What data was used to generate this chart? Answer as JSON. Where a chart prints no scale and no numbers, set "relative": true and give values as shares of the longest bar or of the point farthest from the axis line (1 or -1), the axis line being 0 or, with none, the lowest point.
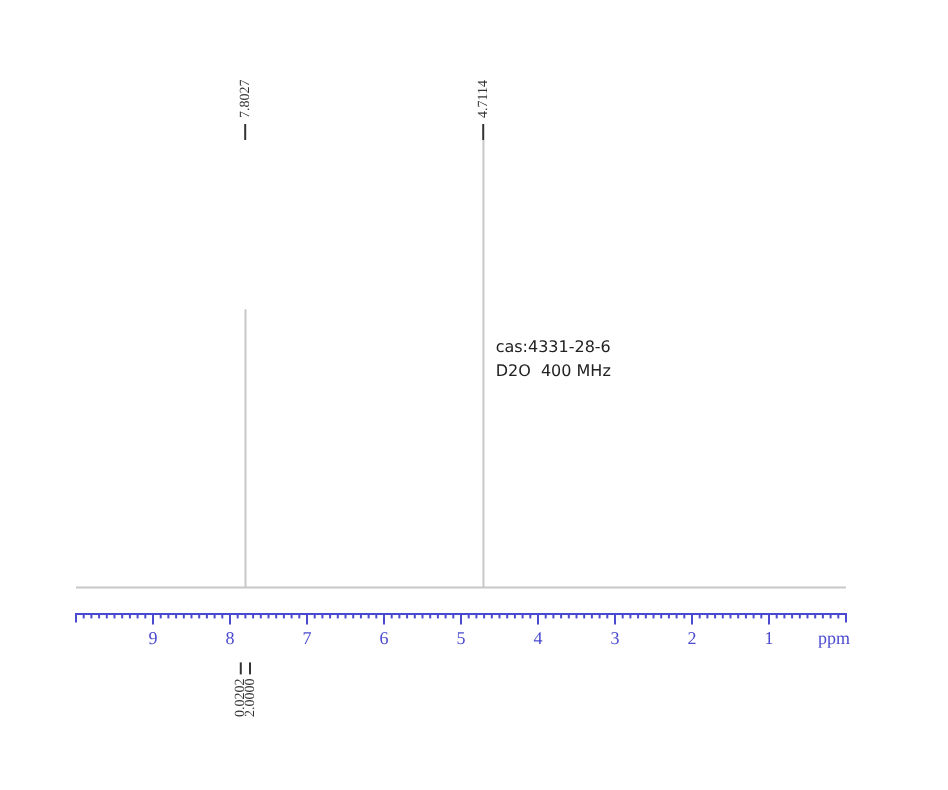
{
  "chart_data": {
    "type": "line",
    "relative": true,
    "xlabel": "ppm",
    "xlim": [
      10,
      0
    ],
    "xticks": [
      9,
      8,
      7,
      6,
      5,
      4,
      3,
      2,
      1
    ],
    "grid": false,
    "legend": false,
    "marker": "none",
    "line_style": "solid",
    "series": [
      {
        "color": "#c8c8c8",
        "x": [
          10,
          7.81,
          7.8027,
          7.795,
          4.72,
          4.7114,
          4.705,
          0
        ],
        "values": [
          0,
          0,
          0.62,
          0,
          0,
          1,
          0,
          0
        ]
      }
    ],
    "annotations": [
      {
        "text": "7.8027",
        "x": 7.8027
      },
      {
        "text": "4.7114",
        "x": 4.7114
      },
      "cas:4331-28-6",
      "D2O  400 MHz",
      {
        "text": "0.0202",
        "x": 7.86
      },
      {
        "text": "2.0000",
        "x": 7.74
      }
    ]
  }
}
